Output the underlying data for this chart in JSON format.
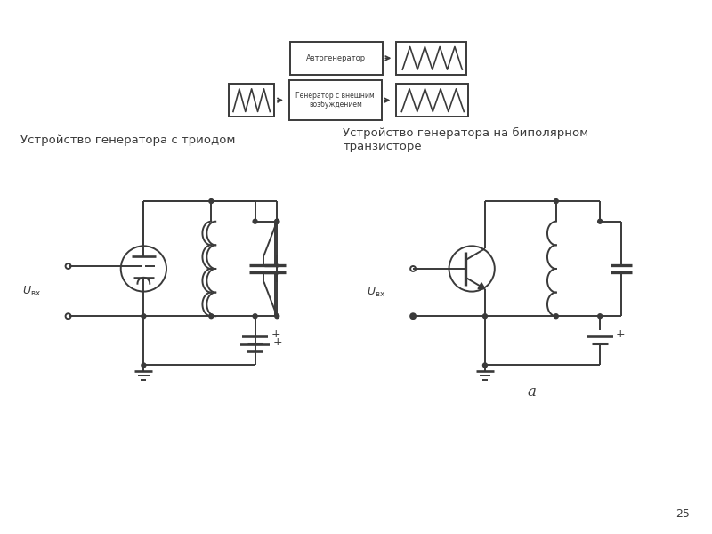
{
  "bg_color": "#ffffff",
  "line_color": "#3a3a3a",
  "title1": "Устройство генератора с триодом",
  "title2": "Устройство генератора на биполярном\nтранзисторе",
  "label_a": "а",
  "page_num": "25",
  "box1_label": "Автогенератор",
  "box2_label": "Генератор с внешним\nвозбуждением",
  "lw": 1.4,
  "dot_r": 0.025
}
